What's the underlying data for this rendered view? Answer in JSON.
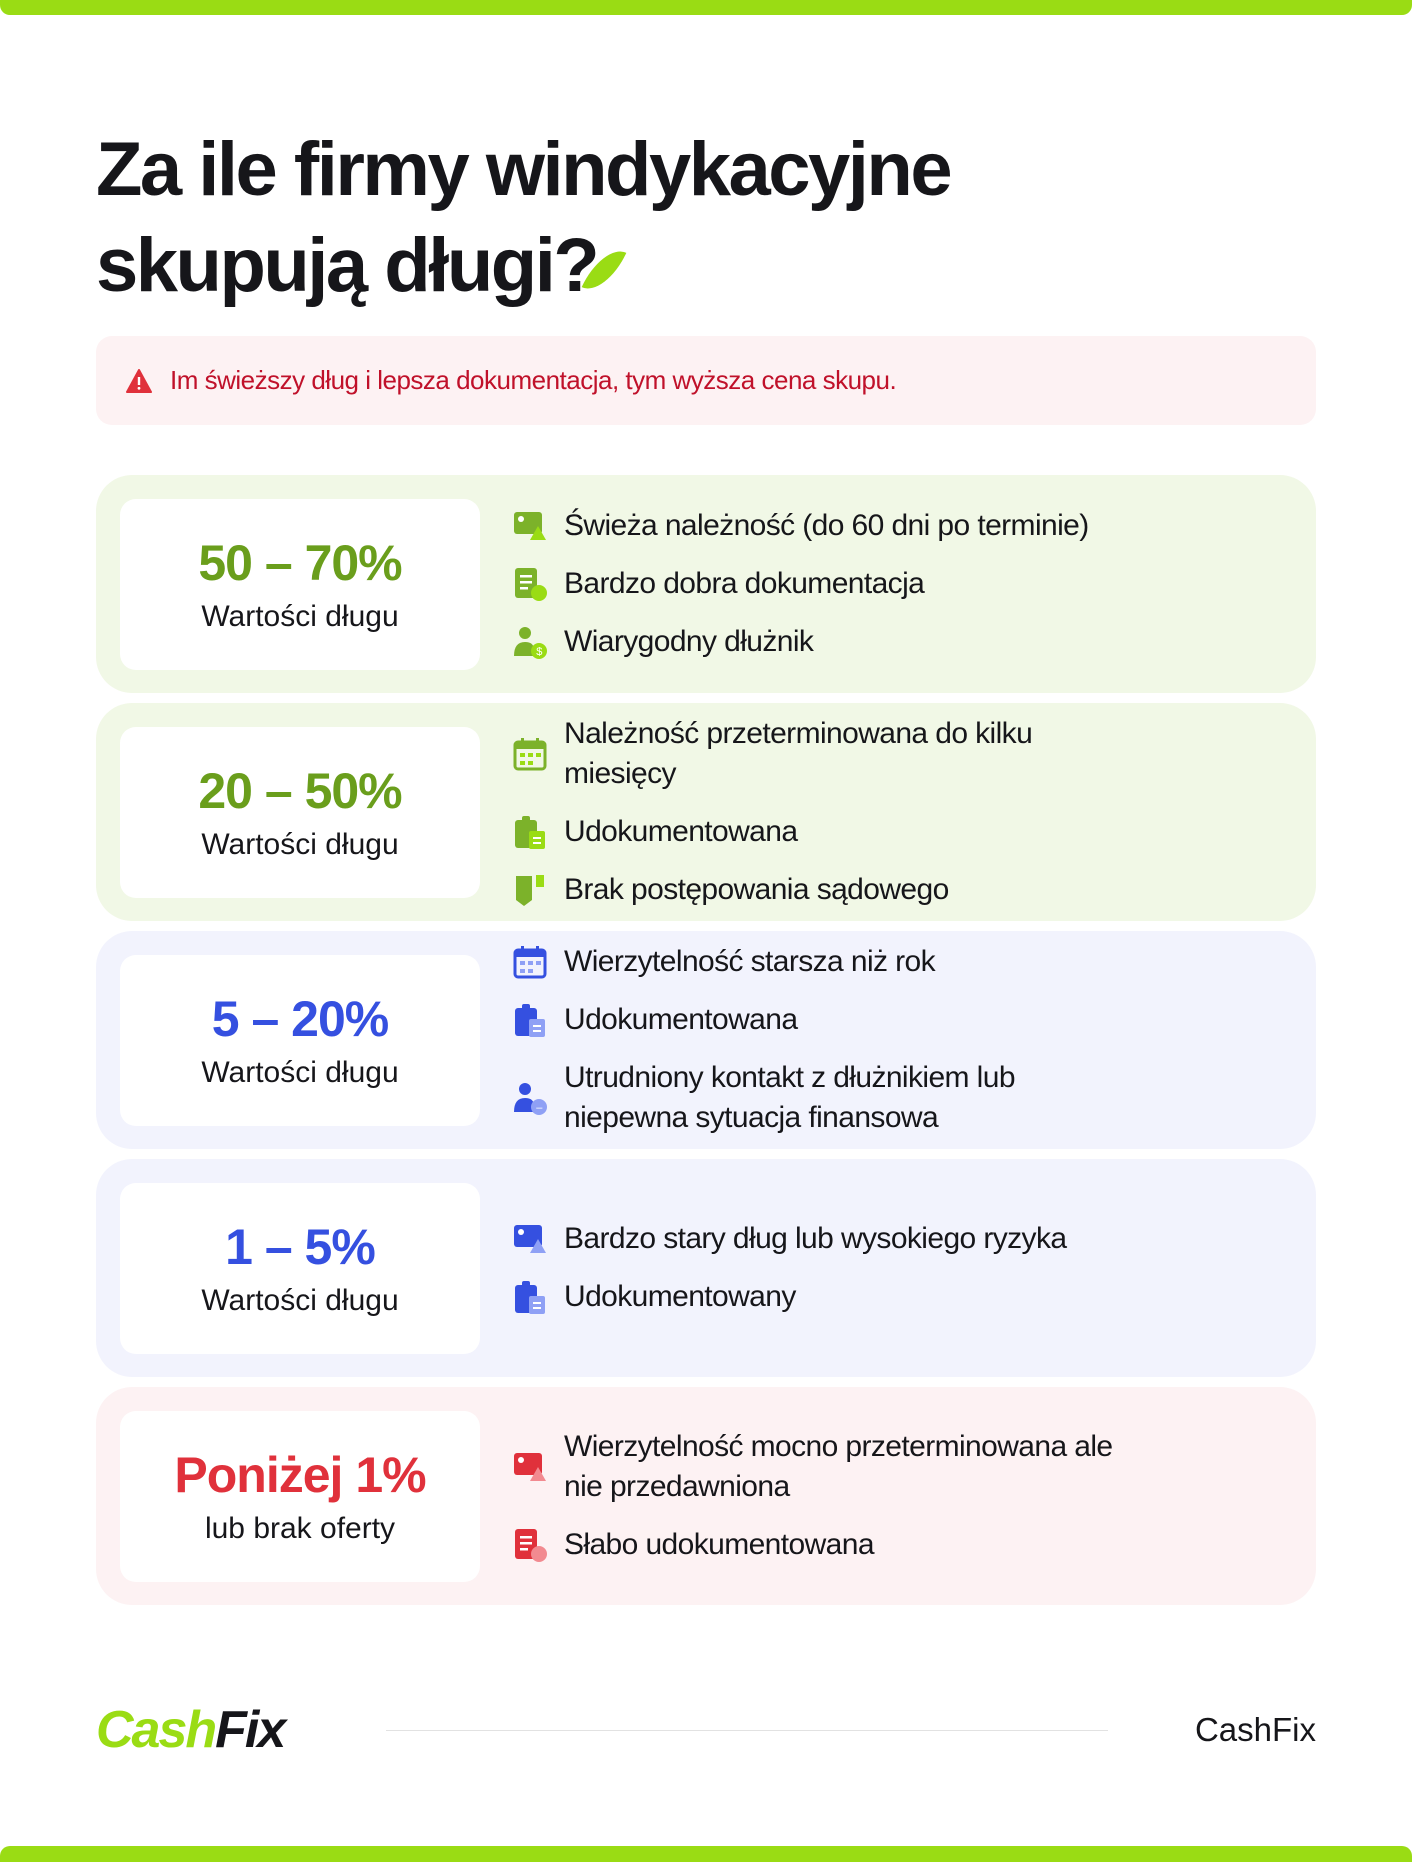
{
  "title_line1": "Za ile firmy windykacyjne",
  "title_line2": "skupują długi?",
  "alert": {
    "icon": "warning-triangle-icon",
    "text": "Im świeższy dług i lepsza dokumentacja, tym wyższa cena skupu.",
    "color": "#c0112a"
  },
  "colors": {
    "accent": "#9adc14",
    "green": "#6a9e1c",
    "blue": "#3550e0",
    "red": "#e0313b"
  },
  "tiers": [
    {
      "theme": "green",
      "percent": "50 – 70%",
      "subtitle": "Wartości długu",
      "items": [
        {
          "icon": "fresh-invoice-icon",
          "text": "Świeża należność (do 60 dni po terminie)"
        },
        {
          "icon": "document-heart-icon",
          "text": "Bardzo dobra dokumentacja"
        },
        {
          "icon": "person-dollar-icon",
          "text": "Wiarygodny dłużnik"
        }
      ]
    },
    {
      "theme": "green",
      "percent": "20 – 50%",
      "subtitle": "Wartości długu",
      "items": [
        {
          "icon": "calendar-icon",
          "text": "Należność przeterminowana do kilku miesięcy"
        },
        {
          "icon": "clipboard-icon",
          "text": "Udokumentowana"
        },
        {
          "icon": "no-court-icon",
          "text": "Brak postępowania sądowego"
        }
      ]
    },
    {
      "theme": "blue",
      "percent": "5 – 20%",
      "subtitle": "Wartości długu",
      "items": [
        {
          "icon": "calendar-icon",
          "text": "Wierzytelność starsza niż rok"
        },
        {
          "icon": "clipboard-icon",
          "text": "Udokumentowana"
        },
        {
          "icon": "person-minus-icon",
          "text": "Utrudniony kontakt z dłużnikiem lub niepewna sytuacja finansowa"
        }
      ]
    },
    {
      "theme": "blue",
      "percent": "1 – 5%",
      "subtitle": "Wartości długu",
      "items": [
        {
          "icon": "invoice-warning-icon",
          "text": "Bardzo stary dług lub wysokiego ryzyka"
        },
        {
          "icon": "clipboard-icon",
          "text": "Udokumentowany"
        }
      ]
    },
    {
      "theme": "red",
      "percent": "Poniżej 1%",
      "subtitle": "lub brak oferty",
      "items": [
        {
          "icon": "invoice-lock-icon",
          "text": "Wierzytelność mocno przeterminowana ale nie przedawniona"
        },
        {
          "icon": "document-x-icon",
          "text": "Słabo udokumentowana"
        }
      ]
    }
  ],
  "footer": {
    "logo_part1": "Cash",
    "logo_part2": "Fix",
    "brand": "CashFix"
  }
}
